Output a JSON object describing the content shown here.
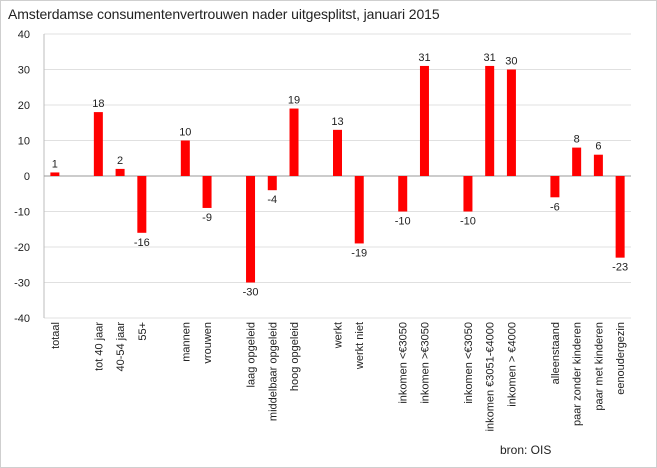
{
  "chart_data": {
    "type": "bar",
    "title": "Amsterdamse consumentenvertrouwen nader uitgesplitst, januari 2015",
    "source": "bron: OIS",
    "ylim": [
      -40,
      40
    ],
    "yticks": [
      40,
      30,
      20,
      10,
      0,
      -10,
      -20,
      -30,
      -40
    ],
    "grid": true,
    "bar_color": "#ff0000",
    "categories": [
      "totaal",
      "",
      "tot 40 jaar",
      "40-54 jaar",
      "55+",
      "",
      "mannen",
      "vrouwen",
      "",
      "laag opgeleid",
      "middelbaar opgeleid",
      "hoog opgeleid",
      "",
      "werkt",
      "werkt niet",
      "",
      "inkomen <€3050",
      "inkomen >€3050",
      "",
      "inkomen <€3050",
      "inkomen €3051-€4000",
      "inkomen > €4000",
      "",
      "alleenstaand",
      "paar zonder kinderen",
      "paar met kinderen",
      "eenoudergezin"
    ],
    "values": [
      1,
      null,
      18,
      2,
      -16,
      null,
      10,
      -9,
      null,
      -30,
      -4,
      19,
      null,
      13,
      -19,
      null,
      -10,
      31,
      null,
      -10,
      31,
      30,
      null,
      -6,
      8,
      6,
      -23
    ],
    "labels": [
      "1",
      "",
      "18",
      "2",
      "-16",
      "",
      "10",
      "-9",
      "",
      "-30",
      "-4",
      "19",
      "",
      "13",
      "-19",
      "",
      "-10",
      "31",
      "",
      "-10",
      "31",
      "30",
      "",
      "-6",
      "8",
      "6",
      "-23"
    ]
  }
}
